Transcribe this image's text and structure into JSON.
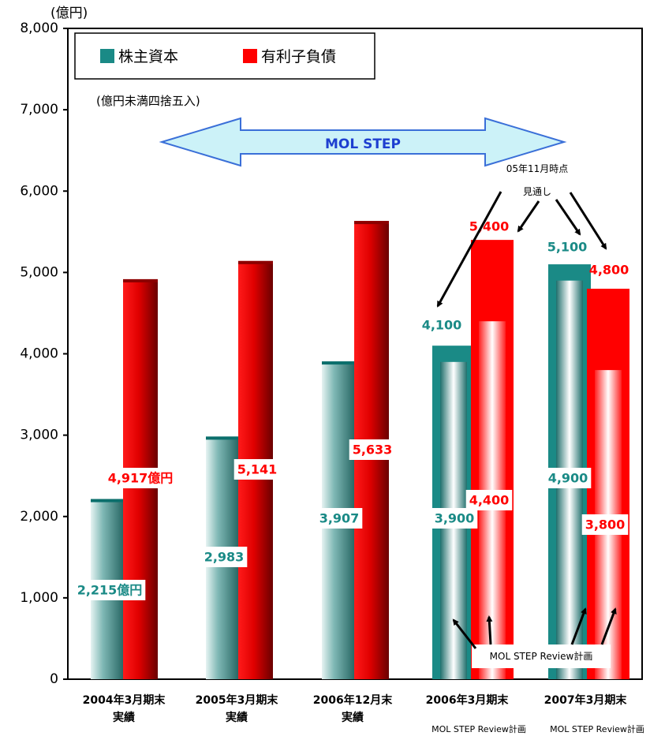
{
  "chart_data": {
    "type": "bar",
    "unit_label": "(億円)",
    "rounding_note": "(億円未満四捨五入)",
    "banner": "MOL STEP",
    "ylim": [
      0,
      8000
    ],
    "yticks": [
      "0",
      "1,000",
      "2,000",
      "3,000",
      "4,000",
      "5,000",
      "6,000",
      "7,000",
      "8,000"
    ],
    "legend": {
      "position": "top-left",
      "equity_label": "株主資本",
      "debt_label": "有利子負債"
    },
    "colors": {
      "equity": "#1a8a86",
      "equity_dark": "#0b6f6c",
      "debt": "#ff0000",
      "debt_dark": "#8b0000",
      "equity_text": "#1a8a86",
      "debt_text": "#ff0000"
    },
    "categories": [
      {
        "line1": "2004年3月期末",
        "line2": "実績"
      },
      {
        "line1": "2005年3月期末",
        "line2": "実績"
      },
      {
        "line1": "2006年12月末",
        "line2": "実績"
      },
      {
        "line1": "2006年3月期末",
        "line2": ""
      },
      {
        "line1": "2007年3月期末",
        "line2": ""
      }
    ],
    "series": [
      {
        "name": "株主資本",
        "values": [
          2215,
          2983,
          3907,
          3900,
          4900
        ]
      },
      {
        "name": "有利子負債",
        "values": [
          4917,
          5141,
          5633,
          4400,
          3800
        ]
      }
    ],
    "forecast": {
      "note_line1": "05年11月時点",
      "note_line2": "見通し",
      "equity": [
        4100,
        5100
      ],
      "debt": [
        5400,
        4800
      ]
    },
    "review_note": "MOL STEP Review計画",
    "footer_notes": [
      "MOL STEP Review計画",
      "MOL STEP Review計画"
    ],
    "value_labels": {
      "equity": [
        "2,215億円",
        "2,983",
        "3,907",
        "3,900",
        "4,900"
      ],
      "debt": [
        "4,917億円",
        "5,141",
        "5,633",
        "4,400",
        "3,800"
      ],
      "forecast_equity": [
        "4,100",
        "5,100"
      ],
      "forecast_debt": [
        "5,400",
        "4,800"
      ]
    }
  }
}
